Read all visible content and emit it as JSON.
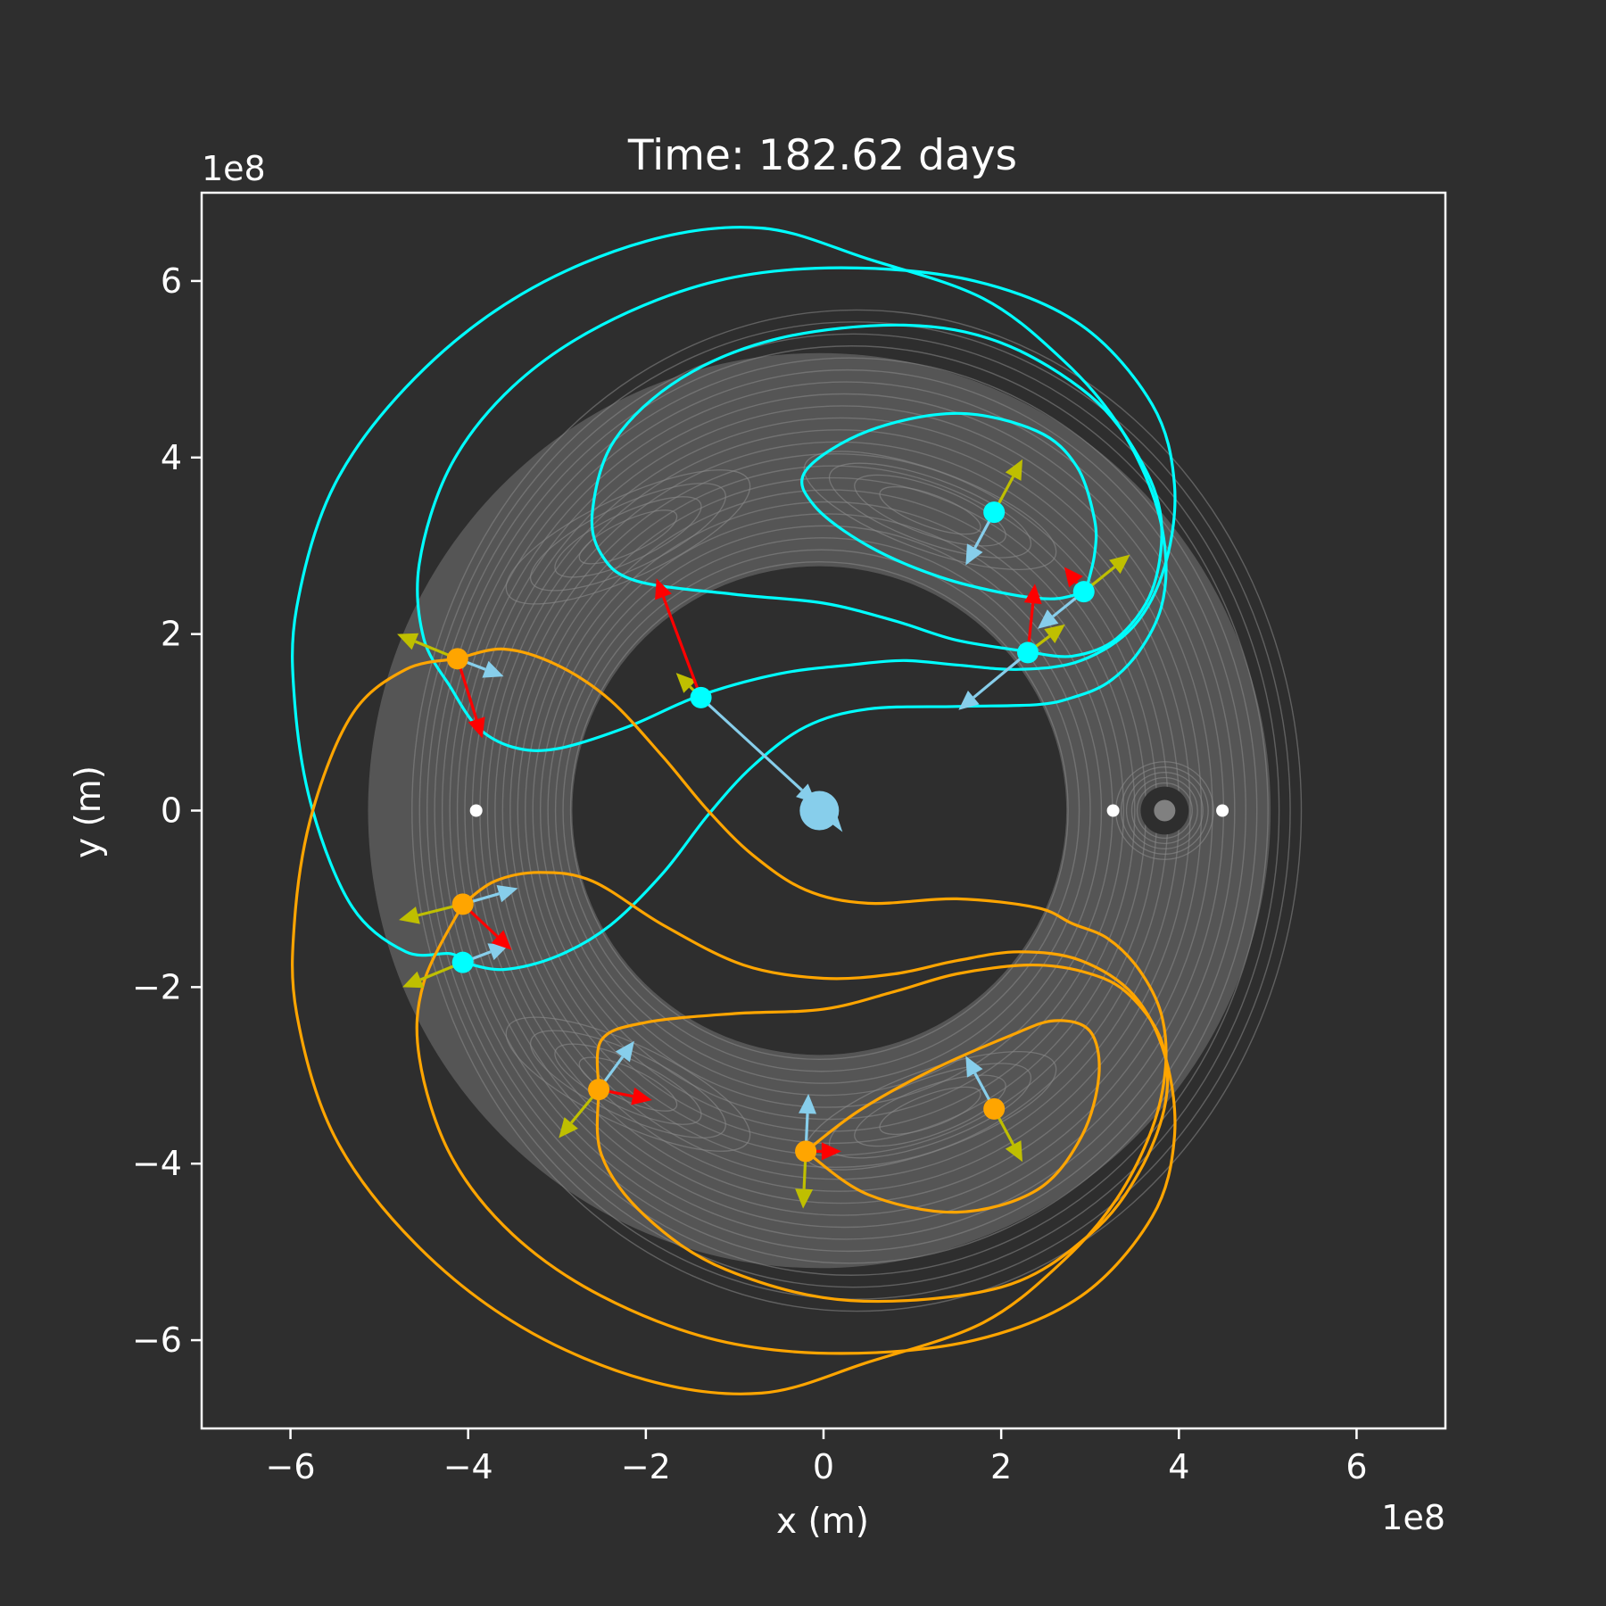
{
  "chart_data": {
    "type": "line",
    "title": "Time: 182.62 days",
    "xlabel": "x (m)",
    "ylabel": "y (m)",
    "x_offset_label": "1e8",
    "y_offset_label": "1e8",
    "xlim": [
      -7,
      7
    ],
    "ylim": [
      -7,
      7
    ],
    "xticks": [
      -6,
      -4,
      -2,
      0,
      2,
      4,
      6
    ],
    "yticks": [
      -6,
      -4,
      -2,
      0,
      2,
      4,
      6
    ],
    "xtick_labels": [
      "−6",
      "−4",
      "−2",
      "0",
      "2",
      "4",
      "6"
    ],
    "ytick_labels": [
      "−6",
      "−4",
      "−2",
      "0",
      "2",
      "4",
      "6"
    ],
    "grid": false,
    "colors": {
      "background": "#2e2e2e",
      "contour": "#8a8a8a",
      "trajectory_cyan": "#00ffff",
      "trajectory_orange": "#ffa500",
      "velocity_arrow": "#bfbf00",
      "acceleration_arrow": "#ff0000",
      "radial_arrow": "#87ceeb",
      "earth": "#87ceeb",
      "moon": "#808080",
      "lagrange_point": "#ffffff",
      "axes": "#ffffff"
    },
    "earth": {
      "x": -0.047,
      "y": 0
    },
    "moon": {
      "x": 3.84,
      "y": 0
    },
    "lagrange_points": [
      {
        "x": 3.26,
        "y": 0
      },
      {
        "x": 4.49,
        "y": 0
      },
      {
        "x": -3.91,
        "y": 0
      }
    ],
    "series": [
      {
        "color": "cyan",
        "points": [
          [
            -4.06,
            -1.72
          ],
          [
            -3.6,
            -1.8
          ],
          [
            -3.0,
            -1.65
          ],
          [
            -2.4,
            -1.3
          ],
          [
            -1.8,
            -0.7
          ],
          [
            -1.3,
            -0.05
          ],
          [
            -0.8,
            0.5
          ],
          [
            -0.2,
            0.95
          ],
          [
            0.5,
            1.15
          ],
          [
            1.5,
            1.18
          ],
          [
            2.4,
            1.2
          ],
          [
            2.8,
            1.28
          ],
          [
            3.2,
            1.45
          ],
          [
            3.55,
            1.8
          ],
          [
            3.8,
            2.3
          ],
          [
            3.85,
            2.9
          ],
          [
            3.7,
            3.6
          ],
          [
            3.3,
            4.4
          ],
          [
            2.7,
            5.1
          ],
          [
            1.8,
            5.8
          ],
          [
            0.5,
            6.25
          ],
          [
            -0.7,
            6.6
          ],
          [
            -2.0,
            6.45
          ],
          [
            -3.4,
            5.85
          ],
          [
            -4.6,
            4.9
          ],
          [
            -5.5,
            3.7
          ],
          [
            -5.93,
            2.3
          ],
          [
            -5.95,
            1.2
          ],
          [
            -5.75,
            0.0
          ],
          [
            -5.3,
            -1.1
          ],
          [
            -4.7,
            -1.6
          ],
          [
            -4.2,
            -1.62
          ],
          [
            -4.06,
            -1.72
          ]
        ]
      },
      {
        "color": "cyan",
        "points": [
          [
            -4.2,
            1.4
          ],
          [
            -4.5,
            1.95
          ],
          [
            -4.55,
            2.8
          ],
          [
            -4.2,
            3.9
          ],
          [
            -3.5,
            4.8
          ],
          [
            -2.5,
            5.5
          ],
          [
            -1.2,
            6.0
          ],
          [
            0.2,
            6.15
          ],
          [
            1.7,
            6.0
          ],
          [
            2.9,
            5.5
          ],
          [
            3.7,
            4.6
          ],
          [
            3.95,
            3.7
          ],
          [
            3.85,
            2.8
          ],
          [
            3.5,
            2.1
          ],
          [
            2.9,
            1.7
          ],
          [
            2.2,
            1.6
          ],
          [
            1.5,
            1.65
          ],
          [
            0.9,
            1.7
          ],
          [
            0.3,
            1.65
          ],
          [
            -0.5,
            1.55
          ],
          [
            -1.4,
            1.3
          ],
          [
            -2.2,
            0.95
          ],
          [
            -3.0,
            0.7
          ],
          [
            -3.5,
            0.72
          ],
          [
            -3.9,
            0.95
          ],
          [
            -4.2,
            1.4
          ]
        ]
      },
      {
        "color": "cyan",
        "points": [
          [
            2.3,
            1.8
          ],
          [
            2.8,
            1.75
          ],
          [
            3.3,
            1.95
          ],
          [
            3.7,
            2.5
          ],
          [
            3.8,
            3.3
          ],
          [
            3.55,
            4.0
          ],
          [
            3.0,
            4.7
          ],
          [
            2.0,
            5.3
          ],
          [
            0.9,
            5.5
          ],
          [
            -0.5,
            5.35
          ],
          [
            -1.6,
            4.9
          ],
          [
            -2.35,
            4.2
          ],
          [
            -2.6,
            3.4
          ],
          [
            -2.5,
            2.9
          ],
          [
            -2.1,
            2.6
          ],
          [
            -1.0,
            2.45
          ],
          [
            0.0,
            2.35
          ],
          [
            0.8,
            2.15
          ],
          [
            1.5,
            1.93
          ],
          [
            2.3,
            1.8
          ]
        ]
      },
      {
        "color": "cyan",
        "points": [
          [
            2.95,
            2.48
          ],
          [
            3.05,
            2.9
          ],
          [
            3.05,
            3.3
          ],
          [
            2.85,
            3.9
          ],
          [
            2.4,
            4.3
          ],
          [
            1.5,
            4.5
          ],
          [
            0.5,
            4.3
          ],
          [
            -0.2,
            3.85
          ],
          [
            -0.1,
            3.45
          ],
          [
            0.5,
            3.0
          ],
          [
            1.3,
            2.65
          ],
          [
            2.1,
            2.45
          ],
          [
            2.6,
            2.4
          ],
          [
            2.95,
            2.48
          ]
        ]
      },
      {
        "color": "orange",
        "points": [
          [
            -4.12,
            1.72
          ],
          [
            -3.6,
            1.83
          ],
          [
            -3.0,
            1.65
          ],
          [
            -2.4,
            1.25
          ],
          [
            -1.8,
            0.6
          ],
          [
            -1.3,
            0.0
          ],
          [
            -0.8,
            -0.5
          ],
          [
            -0.2,
            -0.9
          ],
          [
            0.5,
            -1.05
          ],
          [
            1.5,
            -1.0
          ],
          [
            2.4,
            -1.1
          ],
          [
            2.8,
            -1.28
          ],
          [
            3.2,
            -1.45
          ],
          [
            3.55,
            -1.8
          ],
          [
            3.8,
            -2.3
          ],
          [
            3.85,
            -2.9
          ],
          [
            3.7,
            -3.6
          ],
          [
            3.3,
            -4.4
          ],
          [
            2.7,
            -5.1
          ],
          [
            1.8,
            -5.8
          ],
          [
            0.5,
            -6.25
          ],
          [
            -0.7,
            -6.6
          ],
          [
            -2.0,
            -6.45
          ],
          [
            -3.4,
            -5.85
          ],
          [
            -4.6,
            -4.9
          ],
          [
            -5.5,
            -3.7
          ],
          [
            -5.93,
            -2.3
          ],
          [
            -5.95,
            -1.2
          ],
          [
            -5.75,
            0.0
          ],
          [
            -5.3,
            1.1
          ],
          [
            -4.7,
            1.6
          ],
          [
            -4.12,
            1.72
          ]
        ]
      },
      {
        "color": "orange",
        "points": [
          [
            -4.06,
            -1.06
          ],
          [
            -4.5,
            -1.95
          ],
          [
            -4.55,
            -2.8
          ],
          [
            -4.2,
            -3.9
          ],
          [
            -3.5,
            -4.8
          ],
          [
            -2.5,
            -5.5
          ],
          [
            -1.2,
            -6.0
          ],
          [
            0.2,
            -6.15
          ],
          [
            1.7,
            -6.0
          ],
          [
            2.9,
            -5.5
          ],
          [
            3.7,
            -4.6
          ],
          [
            3.95,
            -3.7
          ],
          [
            3.85,
            -2.8
          ],
          [
            3.5,
            -2.1
          ],
          [
            2.9,
            -1.7
          ],
          [
            2.2,
            -1.6
          ],
          [
            1.5,
            -1.7
          ],
          [
            0.8,
            -1.85
          ],
          [
            0.0,
            -1.9
          ],
          [
            -0.9,
            -1.75
          ],
          [
            -1.8,
            -1.3
          ],
          [
            -2.6,
            -0.8
          ],
          [
            -3.2,
            -0.7
          ],
          [
            -3.7,
            -0.8
          ],
          [
            -4.06,
            -1.06
          ]
        ]
      },
      {
        "color": "orange",
        "points": [
          [
            -2.53,
            -3.16
          ],
          [
            -2.5,
            -2.6
          ],
          [
            -2.0,
            -2.4
          ],
          [
            -1.0,
            -2.3
          ],
          [
            0.0,
            -2.25
          ],
          [
            0.8,
            -2.05
          ],
          [
            1.5,
            -1.85
          ],
          [
            2.3,
            -1.75
          ],
          [
            2.9,
            -1.82
          ],
          [
            3.4,
            -2.05
          ],
          [
            3.8,
            -2.6
          ],
          [
            3.85,
            -3.3
          ],
          [
            3.55,
            -4.1
          ],
          [
            3.0,
            -4.8
          ],
          [
            2.0,
            -5.4
          ],
          [
            0.3,
            -5.55
          ],
          [
            -1.1,
            -5.2
          ],
          [
            -2.0,
            -4.6
          ],
          [
            -2.5,
            -3.9
          ],
          [
            -2.53,
            -3.16
          ]
        ]
      },
      {
        "color": "orange",
        "points": [
          [
            -0.2,
            -3.86
          ],
          [
            0.4,
            -3.4
          ],
          [
            1.2,
            -2.95
          ],
          [
            2.1,
            -2.55
          ],
          [
            2.6,
            -2.38
          ],
          [
            3.0,
            -2.5
          ],
          [
            3.1,
            -3.0
          ],
          [
            2.9,
            -3.7
          ],
          [
            2.4,
            -4.3
          ],
          [
            1.5,
            -4.55
          ],
          [
            0.5,
            -4.35
          ],
          [
            -0.2,
            -3.86
          ]
        ]
      }
    ],
    "bodies": [
      {
        "color": "cyan",
        "x": 1.92,
        "y": 3.38,
        "arrows": [
          {
            "type": "velocity",
            "dx": 0.32,
            "dy": 0.6
          },
          {
            "type": "radial",
            "dx": -0.32,
            "dy": -0.6
          },
          {
            "type": "acceleration",
            "dx": 0.12,
            "dy": -0.02
          }
        ]
      },
      {
        "color": "cyan",
        "x": 2.93,
        "y": 2.48,
        "arrows": [
          {
            "type": "velocity",
            "dx": 0.52,
            "dy": 0.42
          },
          {
            "type": "radial",
            "dx": -0.52,
            "dy": -0.42
          },
          {
            "type": "acceleration",
            "dx": -0.22,
            "dy": 0.28
          }
        ]
      },
      {
        "color": "cyan",
        "x": 2.3,
        "y": 1.79,
        "arrows": [
          {
            "type": "velocity",
            "dx": 0.42,
            "dy": 0.32
          },
          {
            "type": "radial",
            "dx": -0.78,
            "dy": -0.65
          },
          {
            "type": "acceleration",
            "dx": 0.08,
            "dy": 0.78
          }
        ]
      },
      {
        "color": "cyan",
        "x": -1.38,
        "y": 1.28,
        "arrows": [
          {
            "type": "velocity",
            "dx": -0.28,
            "dy": 0.28
          },
          {
            "type": "radial",
            "dx": 1.3,
            "dy": -1.2
          },
          {
            "type": "acceleration",
            "dx": -0.5,
            "dy": 1.35
          }
        ]
      },
      {
        "color": "cyan",
        "x": -4.06,
        "y": -1.72,
        "arrows": [
          {
            "type": "velocity",
            "dx": -0.68,
            "dy": -0.28
          },
          {
            "type": "radial",
            "dx": 0.52,
            "dy": 0.2
          },
          {
            "type": "acceleration",
            "dx": 0.05,
            "dy": 0.0
          }
        ]
      },
      {
        "color": "orange",
        "x": -4.12,
        "y": 1.72,
        "arrows": [
          {
            "type": "velocity",
            "dx": -0.68,
            "dy": 0.28
          },
          {
            "type": "radial",
            "dx": 0.52,
            "dy": -0.2
          },
          {
            "type": "acceleration",
            "dx": 0.28,
            "dy": -0.9
          }
        ]
      },
      {
        "color": "orange",
        "x": -4.06,
        "y": -1.06,
        "arrows": [
          {
            "type": "velocity",
            "dx": -0.72,
            "dy": -0.18
          },
          {
            "type": "radial",
            "dx": 0.62,
            "dy": 0.18
          },
          {
            "type": "acceleration",
            "dx": 0.55,
            "dy": -0.52
          }
        ]
      },
      {
        "color": "orange",
        "x": -2.53,
        "y": -3.16,
        "arrows": [
          {
            "type": "velocity",
            "dx": -0.45,
            "dy": -0.55
          },
          {
            "type": "radial",
            "dx": 0.4,
            "dy": 0.55
          },
          {
            "type": "acceleration",
            "dx": 0.6,
            "dy": -0.12
          }
        ]
      },
      {
        "color": "orange",
        "x": -0.2,
        "y": -3.86,
        "arrows": [
          {
            "type": "velocity",
            "dx": -0.03,
            "dy": -0.65
          },
          {
            "type": "radial",
            "dx": 0.03,
            "dy": 0.65
          },
          {
            "type": "acceleration",
            "dx": 0.4,
            "dy": 0.0
          }
        ]
      },
      {
        "color": "orange",
        "x": 1.92,
        "y": -3.38,
        "arrows": [
          {
            "type": "velocity",
            "dx": 0.32,
            "dy": -0.6
          },
          {
            "type": "radial",
            "dx": -0.32,
            "dy": 0.6
          },
          {
            "type": "acceleration",
            "dx": -0.12,
            "dy": 0.02
          }
        ]
      }
    ]
  }
}
